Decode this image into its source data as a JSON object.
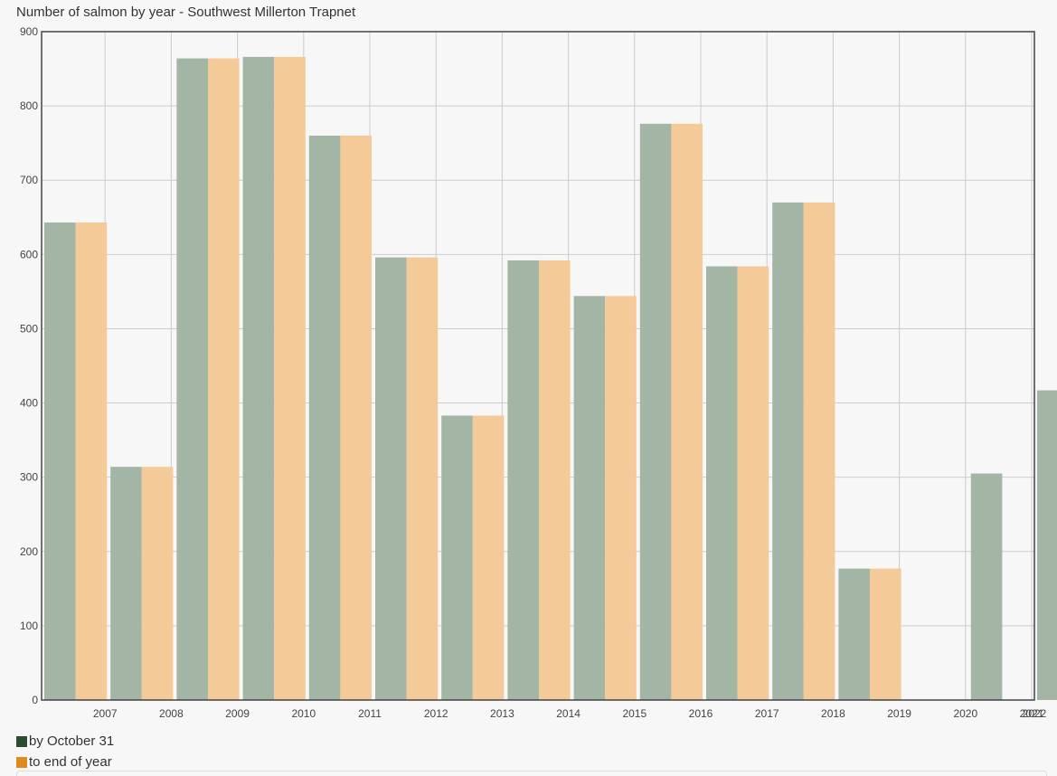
{
  "chart_data": {
    "type": "bar",
    "title": "Number of salmon by year - Southwest Millerton Trapnet",
    "xlabel": "",
    "ylabel": "",
    "ylim": [
      0,
      900
    ],
    "yticks": [
      "0",
      "100",
      "200",
      "300",
      "400",
      "500",
      "600",
      "700",
      "800",
      "900"
    ],
    "categories": [
      "2007",
      "2008",
      "2009",
      "2010",
      "2011",
      "2012",
      "2013",
      "2014",
      "2015",
      "2016",
      "2017",
      "2018",
      "2019",
      "2020",
      "2021",
      "2022"
    ],
    "series": [
      {
        "name": "by October 31",
        "values": [
          643,
          314,
          864,
          866,
          760,
          596,
          383,
          592,
          544,
          776,
          584,
          670,
          177,
          null,
          305,
          417
        ],
        "color": "#a3b5a5",
        "legend_color": "#2e4d2e"
      },
      {
        "name": "to end of year",
        "values": [
          643,
          314,
          864,
          866,
          760,
          596,
          383,
          592,
          544,
          776,
          584,
          670,
          177,
          null,
          null,
          null
        ],
        "color": "#f4ca99",
        "legend_color": "#e08a1e"
      }
    ],
    "grid": true,
    "legend_position": "bottom-left"
  }
}
